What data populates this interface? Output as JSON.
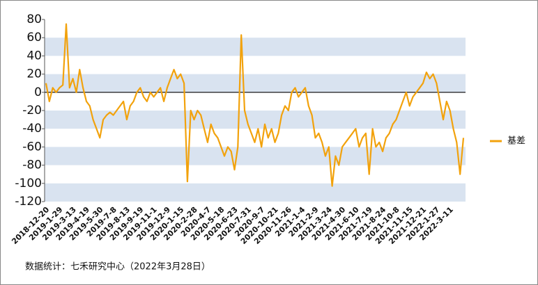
{
  "chart_data": {
    "type": "line",
    "categories": [
      "2018-12-20",
      null,
      null,
      null,
      "2019-1-29",
      null,
      null,
      null,
      "2019-3-13",
      null,
      null,
      null,
      "2019-4-19",
      null,
      null,
      null,
      "2019-5-30",
      null,
      null,
      null,
      "2019-7-8",
      null,
      null,
      null,
      "2019-8-13",
      null,
      null,
      null,
      "2019-9-19",
      null,
      null,
      null,
      "2019-11-1",
      null,
      null,
      null,
      "2019-12-9",
      null,
      null,
      null,
      "2020-1-15",
      null,
      null,
      null,
      "2020-2-28",
      null,
      null,
      null,
      "2020-4-7",
      null,
      null,
      null,
      "2020-5-18",
      null,
      null,
      null,
      "2020-6-23",
      null,
      null,
      null,
      "2020-7-31",
      null,
      null,
      null,
      "2020-9-7",
      null,
      null,
      null,
      "2020-10-21",
      null,
      null,
      null,
      "2020-11-26",
      null,
      null,
      null,
      "2021-1-4",
      null,
      null,
      null,
      "2021-2-9",
      null,
      null,
      null,
      "2021-3-24",
      null,
      null,
      null,
      "2021-4-30",
      null,
      null,
      null,
      "2021-6-10",
      null,
      null,
      null,
      "2021-7-19",
      null,
      null,
      null,
      "2021-8-24",
      null,
      null,
      null,
      "2021-10-8",
      null,
      null,
      null,
      "2021-11-15",
      null,
      null,
      null,
      "2021-12-21",
      null,
      null,
      null,
      "2022-1-27",
      null,
      null,
      null,
      "2022-3-11",
      null,
      null,
      null,
      null
    ],
    "series": [
      {
        "name": "基差",
        "color": "#f2a20c",
        "values": [
          10,
          -10,
          5,
          0,
          5,
          8,
          75,
          5,
          15,
          0,
          25,
          5,
          -10,
          -15,
          -30,
          -40,
          -50,
          -30,
          -25,
          -22,
          -25,
          -20,
          -15,
          -10,
          -30,
          -15,
          -10,
          0,
          5,
          -5,
          -10,
          0,
          -5,
          0,
          5,
          -10,
          5,
          15,
          25,
          15,
          20,
          10,
          -98,
          -20,
          -30,
          -20,
          -25,
          -40,
          -55,
          -35,
          -45,
          -50,
          -60,
          -70,
          -60,
          -65,
          -85,
          -60,
          63,
          -20,
          -35,
          -45,
          -55,
          -40,
          -60,
          -35,
          -50,
          -40,
          -55,
          -45,
          -25,
          -15,
          -20,
          0,
          5,
          -5,
          0,
          5,
          -15,
          -25,
          -50,
          -45,
          -55,
          -70,
          -60,
          -103,
          -70,
          -80,
          -60,
          -55,
          -50,
          -45,
          -40,
          -60,
          -50,
          -45,
          -90,
          -40,
          -60,
          -55,
          -65,
          -50,
          -45,
          -35,
          -30,
          -20,
          -10,
          0,
          -15,
          -5,
          0,
          5,
          10,
          22,
          15,
          20,
          10,
          -10,
          -30,
          -10,
          -20,
          -40,
          -55,
          -90,
          -50
        ]
      }
    ],
    "ylim": [
      -120,
      80
    ],
    "yticks": [
      -120,
      -100,
      -80,
      -60,
      -40,
      -20,
      0,
      20,
      40,
      60,
      80
    ],
    "bands": true,
    "legend": "right",
    "footnote": "数据统计：七禾研究中心（2022年3月28日）"
  }
}
